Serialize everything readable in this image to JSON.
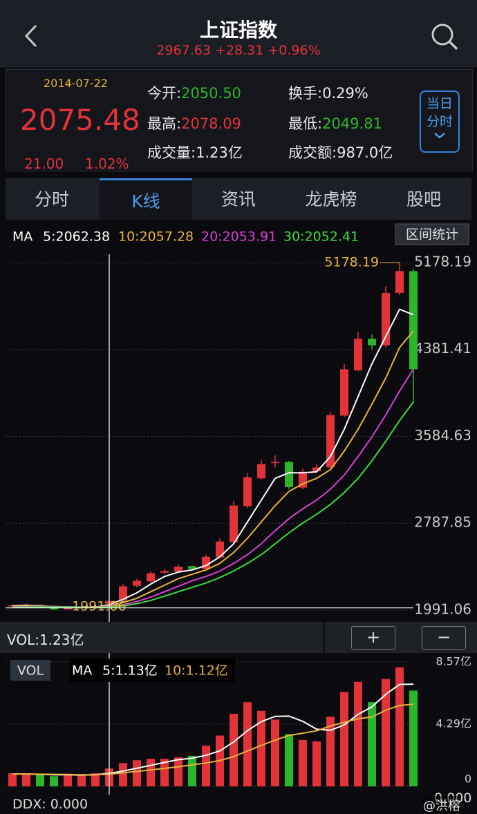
{
  "header": {
    "title": "上证指数",
    "price": "2967.63",
    "change": "+28.31",
    "percent": "+0.96%"
  },
  "quote": {
    "date": "2014-07-22",
    "price": "2075.48",
    "change": "21.00",
    "percent": "1.02%",
    "fields": [
      {
        "label": "今开:",
        "value": "2050.50"
      },
      {
        "label": "换手:",
        "value": "0.29%"
      },
      {
        "label": "最高:",
        "value": "2078.09"
      },
      {
        "label": "最低:",
        "value": "2049.81"
      },
      {
        "label": "成交量:",
        "value": "1.23亿"
      },
      {
        "label": "成交额:",
        "value": "987.0亿"
      }
    ],
    "button": "当日分时"
  },
  "tabs": [
    "分时",
    "K线",
    "资讯",
    "龙虎榜",
    "股吧"
  ],
  "chart_data": [
    {
      "type": "candlestick",
      "legend_prefix": "MA",
      "button": "区间统计",
      "annotations": [
        "5178.19",
        "1991.06"
      ],
      "up_color": "#e2333a",
      "down_color": "#2bb52b",
      "open": [
        2025,
        2035,
        2040,
        2015,
        2000,
        2010,
        2020,
        2050.5,
        2080,
        2215,
        2255,
        2335,
        2345,
        2395,
        2370,
        2475,
        2615,
        2945,
        3200,
        3340,
        3350,
        3115,
        3265,
        3300,
        3775,
        4190,
        4480,
        4420,
        4900,
        5100
      ],
      "high": [
        2045,
        2050,
        2045,
        2020,
        2020,
        2030,
        2040,
        2078.09,
        2230,
        2280,
        2345,
        2370,
        2410,
        2400,
        2500,
        2650,
        2990,
        3250,
        3370,
        3410,
        3360,
        3290,
        3330,
        3810,
        4250,
        4540,
        4520,
        4960,
        5178.19,
        5120
      ],
      "low": [
        2020,
        2028,
        2010,
        1991.06,
        1995,
        2005,
        2015,
        2049.81,
        2075,
        2200,
        2245,
        2320,
        2335,
        2360,
        2360,
        2470,
        2600,
        2930,
        3190,
        3300,
        3100,
        3100,
        3250,
        3290,
        3760,
        4180,
        4380,
        4400,
        4880,
        3900
      ],
      "close": [
        2035,
        2040,
        2015,
        2000,
        2010,
        2020,
        2030,
        2075.48,
        2210,
        2260,
        2330,
        2350,
        2390,
        2370,
        2480,
        2620,
        2950,
        3210,
        3330,
        3350,
        3120,
        3260,
        3300,
        3780,
        4200,
        4480,
        4420,
        4900,
        5100,
        4200
      ],
      "series": [
        {
          "name": "5:2062.38",
          "color": "#ffffff",
          "values": [
            2030,
            2035,
            2030,
            2020,
            2015,
            2015,
            2020,
            2040,
            2090,
            2150,
            2230,
            2300,
            2340,
            2360,
            2400,
            2480,
            2600,
            2800,
            3000,
            3200,
            3250,
            3250,
            3260,
            3400,
            3650,
            3950,
            4250,
            4500,
            4750,
            4700
          ]
        },
        {
          "name": "10:2057.28",
          "color": "#e8b33a",
          "values": [
            2025,
            2030,
            2030,
            2025,
            2020,
            2018,
            2020,
            2030,
            2060,
            2100,
            2160,
            2220,
            2280,
            2320,
            2360,
            2420,
            2520,
            2650,
            2800,
            2950,
            3080,
            3150,
            3200,
            3280,
            3450,
            3650,
            3880,
            4120,
            4400,
            4550
          ]
        },
        {
          "name": "20:2053.91",
          "color": "#d63fd6",
          "values": [
            2020,
            2022,
            2025,
            2025,
            2022,
            2020,
            2020,
            2025,
            2040,
            2070,
            2110,
            2160,
            2210,
            2260,
            2300,
            2350,
            2420,
            2500,
            2600,
            2720,
            2830,
            2920,
            3000,
            3100,
            3230,
            3400,
            3580,
            3780,
            4000,
            4200
          ]
        },
        {
          "name": "30:2052.41",
          "color": "#3ddc3d",
          "values": [
            2015,
            2018,
            2020,
            2020,
            2020,
            2018,
            2018,
            2020,
            2030,
            2050,
            2080,
            2120,
            2160,
            2200,
            2240,
            2290,
            2350,
            2420,
            2500,
            2600,
            2700,
            2790,
            2870,
            2960,
            3070,
            3200,
            3360,
            3540,
            3730,
            3900
          ]
        }
      ],
      "ylim": [
        1991.06,
        5178.19
      ],
      "yticks": [
        1991.06,
        2787.85,
        3584.63,
        4381.41,
        5178.19
      ],
      "grid": true
    },
    {
      "type": "bar",
      "title": "VOL:1.23亿",
      "badge": "VOL",
      "legend_prefix": "MA",
      "buttons": [
        "+",
        "−"
      ],
      "values": [
        0.9,
        0.8,
        0.8,
        0.7,
        0.8,
        0.8,
        0.9,
        1.23,
        1.6,
        1.8,
        1.9,
        1.9,
        2.0,
        2.1,
        2.8,
        3.5,
        5.0,
        5.8,
        5.2,
        4.6,
        3.6,
        3.2,
        3.1,
        4.8,
        6.5,
        7.2,
        5.8,
        7.4,
        8.2,
        6.6
      ],
      "series": [
        {
          "name": "5:1.13亿",
          "color": "#ffffff",
          "values": [
            0.85,
            0.85,
            0.83,
            0.8,
            0.8,
            0.78,
            0.8,
            0.9,
            1.05,
            1.25,
            1.45,
            1.65,
            1.84,
            1.94,
            2.14,
            2.45,
            3.06,
            3.84,
            4.46,
            4.82,
            4.84,
            4.48,
            3.94,
            3.86,
            4.24,
            4.96,
            5.48,
            6.34,
            7.02,
            7.04
          ]
        },
        {
          "name": "10:1.12亿",
          "color": "#e8b33a",
          "values": [
            0.85,
            0.85,
            0.84,
            0.83,
            0.82,
            0.8,
            0.8,
            0.84,
            0.93,
            1.03,
            1.13,
            1.24,
            1.35,
            1.48,
            1.61,
            1.78,
            2.05,
            2.44,
            2.83,
            3.18,
            3.51,
            3.66,
            3.83,
            4.16,
            4.41,
            4.66,
            4.78,
            5.25,
            5.57,
            5.66
          ]
        }
      ],
      "ylim": [
        0,
        8.57
      ],
      "yticks": [
        0,
        {
          "value": 4.29,
          "label": "4.29亿"
        },
        {
          "value": 8.57,
          "label": "8.57亿"
        }
      ]
    }
  ],
  "footer": {
    "ddx": "DDX: 0.000",
    "ddx_axis": "0.000",
    "watermark": "@洪榕"
  }
}
